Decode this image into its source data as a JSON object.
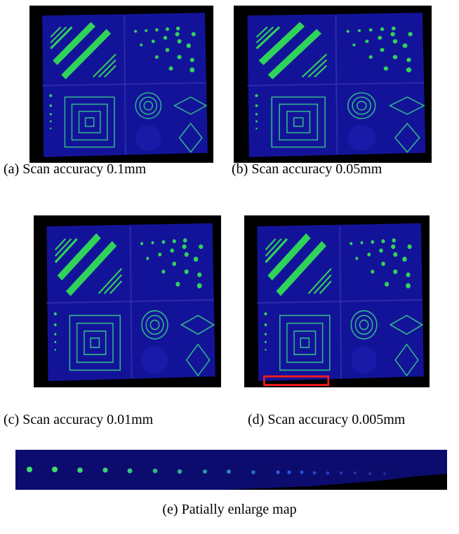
{
  "captions": {
    "a": "(a) Scan accuracy 0.1mm",
    "b": "(b) Scan accuracy 0.05mm",
    "c": "(c) Scan accuracy 0.01mm",
    "d": "(d) Scan accuracy 0.005mm",
    "e": "(e) Patially enlarge map"
  }
}
